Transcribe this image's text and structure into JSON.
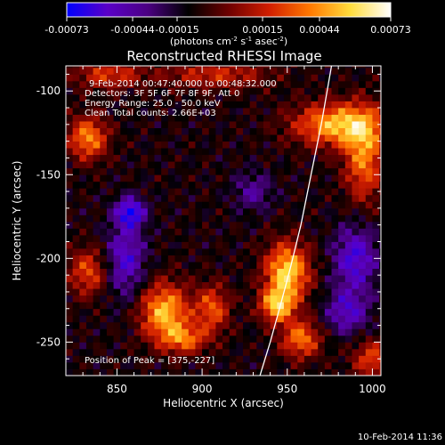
{
  "colorbar": {
    "ticks": [
      "-0.00073",
      "-0.00044",
      "-0.00015",
      "0.00015",
      "0.00044",
      "0.00073"
    ],
    "unit_main": "(photons cm",
    "unit_sup1": "-2",
    "unit_mid1": " s",
    "unit_sup2": "-1",
    "unit_mid2": " asec",
    "unit_sup3": "-2",
    "unit_end": ")",
    "stops": [
      "#0000ff",
      "#5a00c8",
      "#4b0082",
      "#000000",
      "#6e0000",
      "#d21e00",
      "#ff7800",
      "#ffdc3c",
      "#ffffff"
    ]
  },
  "chart_data": {
    "type": "heatmap",
    "title": "Reconstructed RHESSI Image",
    "xlabel": "Heliocentric X (arcsec)",
    "ylabel": "Heliocentric Y (arcsec)",
    "xlim": [
      820,
      1005
    ],
    "ylim": [
      -270,
      -85
    ],
    "x_ticks": [
      850,
      900,
      950,
      1000
    ],
    "y_ticks": [
      -100,
      -150,
      -200,
      -250
    ],
    "annotations": [
      "9-Feb-2014 00:47:40.000 to 00:48:32.000",
      "Detectors: 3F 5F 6F 7F 8F 9F, Att 0",
      "Energy Range: 25.0 - 50.0 keV",
      "Clean    Total counts: 2.66E+03"
    ],
    "peak_label": "Position of Peak = [375,-227]",
    "limb_curve": [
      [
        934,
        -270
      ],
      [
        940,
        -250
      ],
      [
        946,
        -228
      ],
      [
        952,
        -205
      ],
      [
        958,
        -180
      ],
      [
        964,
        -150
      ],
      [
        970,
        -120
      ],
      [
        976,
        -85
      ]
    ],
    "sources": [
      {
        "x": 950,
        "y": -208,
        "sx": 9,
        "sy": 12,
        "amp": 1.0
      },
      {
        "x": 944,
        "y": -228,
        "sx": 7,
        "sy": 7,
        "amp": 0.85
      },
      {
        "x": 958,
        "y": -248,
        "sx": 8,
        "sy": 8,
        "amp": 0.7
      },
      {
        "x": 980,
        "y": -120,
        "sx": 18,
        "sy": 9,
        "amp": 0.9
      },
      {
        "x": 995,
        "y": -140,
        "sx": 8,
        "sy": 18,
        "amp": 0.7
      },
      {
        "x": 833,
        "y": -128,
        "sx": 8,
        "sy": 9,
        "amp": 0.75
      },
      {
        "x": 878,
        "y": -232,
        "sx": 10,
        "sy": 12,
        "amp": 0.9
      },
      {
        "x": 906,
        "y": -230,
        "sx": 7,
        "sy": 10,
        "amp": 0.6
      },
      {
        "x": 890,
        "y": -248,
        "sx": 9,
        "sy": 6,
        "amp": 0.6
      },
      {
        "x": 833,
        "y": -208,
        "sx": 8,
        "sy": 10,
        "amp": 0.55
      },
      {
        "x": 1000,
        "y": -260,
        "sx": 8,
        "sy": 8,
        "amp": 0.55
      },
      {
        "x": 908,
        "y": -90,
        "sx": 22,
        "sy": 6,
        "amp": 0.45
      },
      {
        "x": 845,
        "y": -90,
        "sx": 14,
        "sy": 6,
        "amp": 0.5
      },
      {
        "x": 858,
        "y": -172,
        "sx": 6,
        "sy": 6,
        "amp": -0.7
      },
      {
        "x": 855,
        "y": -200,
        "sx": 8,
        "sy": 16,
        "amp": -0.55
      },
      {
        "x": 990,
        "y": -200,
        "sx": 9,
        "sy": 14,
        "amp": -0.6
      },
      {
        "x": 985,
        "y": -232,
        "sx": 9,
        "sy": 9,
        "amp": -0.5
      },
      {
        "x": 930,
        "y": -160,
        "sx": 8,
        "sy": 8,
        "amp": -0.35
      }
    ]
  },
  "timestamp": "10-Feb-2014 11:36"
}
